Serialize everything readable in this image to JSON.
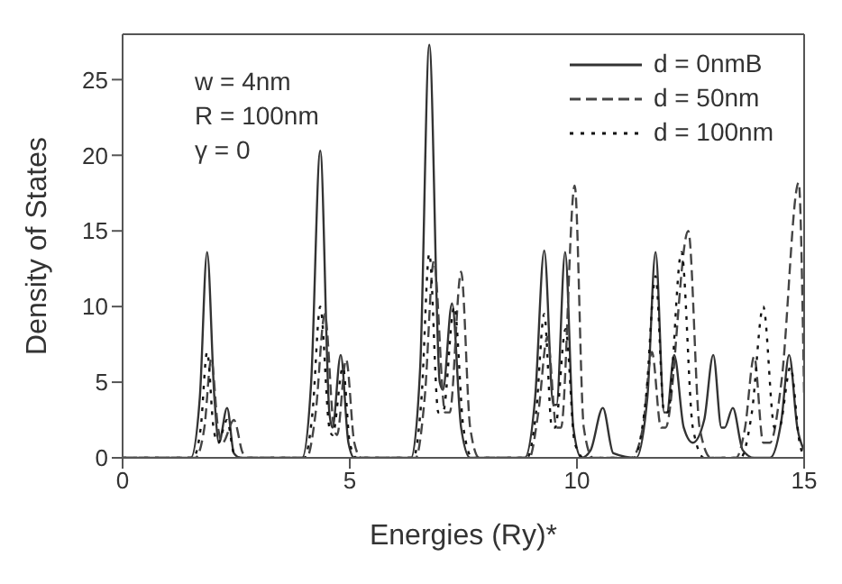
{
  "chart_data": {
    "type": "line",
    "xlabel": "Energies (Ry)*",
    "ylabel": "Density  of States",
    "xlim": [
      0,
      15
    ],
    "ylim": [
      0,
      28
    ],
    "xticks": [
      0,
      5,
      10,
      15
    ],
    "yticks": [
      0,
      5,
      10,
      15,
      20,
      25
    ],
    "legend": "top right",
    "marker": "none",
    "annotations": [
      "w = 4nm",
      "R = 100nm",
      "γ = 0"
    ],
    "series": [
      {
        "name": "d = 0nmB",
        "color": "#333333",
        "line_style": "solid",
        "x": [
          0,
          1.5,
          1.7,
          1.86,
          2.02,
          2.12,
          2.3,
          2.45,
          2.6,
          3.95,
          4.15,
          4.35,
          4.55,
          4.62,
          4.8,
          4.97,
          5.1,
          6.35,
          6.55,
          6.75,
          6.98,
          7.05,
          7.25,
          7.45,
          7.65,
          8.85,
          9.08,
          9.28,
          9.48,
          9.55,
          9.74,
          9.92,
          10.1,
          10.3,
          10.57,
          10.8,
          11.3,
          11.55,
          11.73,
          11.92,
          11.98,
          12.14,
          12.35,
          12.55,
          12.8,
          13.0,
          13.18,
          13.25,
          13.43,
          13.65,
          13.9,
          14.25,
          14.5,
          14.67,
          14.85,
          15
        ],
        "values": [
          0,
          0,
          4,
          13.6,
          4,
          1,
          3.3,
          0.3,
          0,
          0,
          5,
          20.3,
          3,
          2,
          6.8,
          1,
          0,
          0,
          6,
          27.3,
          5,
          4.5,
          10.2,
          2,
          0,
          0,
          4,
          13.7,
          3.5,
          3.5,
          13.6,
          2,
          0,
          0.5,
          3.3,
          0.3,
          0,
          4,
          13.6,
          3,
          3,
          6.8,
          2,
          1,
          2.5,
          6.8,
          2,
          2,
          3.3,
          0.5,
          0,
          0,
          2.5,
          6.8,
          2,
          0.5
        ]
      },
      {
        "name": "d = 50nm",
        "color": "#444444",
        "line_style": "dashed",
        "x": [
          0,
          1.6,
          1.8,
          1.95,
          2.1,
          2.2,
          2.45,
          2.65,
          2.8,
          4.05,
          4.25,
          4.45,
          4.65,
          4.72,
          4.92,
          5.1,
          5.25,
          6.45,
          6.65,
          6.85,
          7.1,
          7.2,
          7.45,
          7.65,
          7.85,
          8.95,
          9.15,
          9.35,
          9.55,
          9.65,
          9.95,
          10.15,
          10.35,
          11.2,
          11.45,
          11.65,
          11.85,
          11.95,
          12.45,
          12.7,
          12.95,
          13.5,
          13.7,
          13.9,
          14.1,
          14.25,
          14.5,
          14.88,
          15
        ],
        "values": [
          0,
          0,
          2,
          6.5,
          2,
          1,
          2.5,
          0.3,
          0,
          0,
          3,
          9.5,
          2,
          1.5,
          6.5,
          1,
          0,
          0,
          4,
          13,
          3,
          3,
          12.3,
          2,
          0,
          0,
          3,
          8,
          2,
          2,
          18,
          2,
          0,
          0,
          2,
          7,
          2,
          2,
          15,
          2,
          0,
          0,
          2,
          6.7,
          1,
          1,
          5,
          18.2,
          4
        ]
      },
      {
        "name": "d = 100nm",
        "color": "#111111",
        "line_style": "dotted",
        "x": [
          0,
          1.55,
          1.72,
          1.86,
          2.0,
          2.1,
          2.3,
          2.45,
          2.6,
          4.0,
          4.18,
          4.35,
          4.55,
          4.62,
          4.85,
          5.0,
          5.15,
          6.4,
          6.58,
          6.75,
          6.95,
          7.05,
          7.3,
          7.5,
          7.7,
          8.9,
          9.1,
          9.28,
          9.45,
          9.52,
          9.75,
          9.95,
          10.15,
          11.25,
          11.52,
          11.73,
          11.92,
          12.0,
          12.3,
          12.55,
          12.8,
          13.6,
          13.85,
          14.1,
          14.35,
          14.45,
          14.7,
          14.9,
          15
        ],
        "values": [
          0,
          0,
          2,
          7,
          2,
          1,
          2.5,
          0.3,
          0,
          0,
          3,
          10,
          2,
          1.5,
          6,
          1,
          0,
          0,
          4,
          13.5,
          3,
          3,
          10,
          2,
          0,
          0,
          3,
          9.5,
          2,
          2,
          8.5,
          1,
          0,
          0,
          4,
          12,
          3,
          3,
          13.6,
          2,
          0,
          0,
          3,
          10,
          2,
          2,
          6,
          1,
          0
        ]
      }
    ]
  }
}
